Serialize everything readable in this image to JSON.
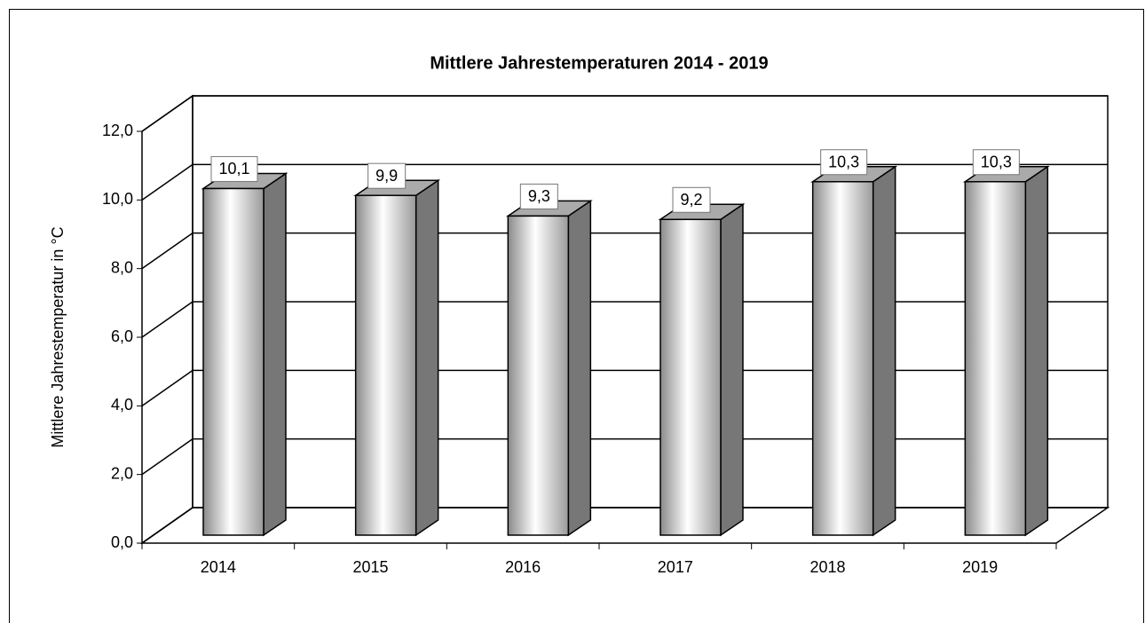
{
  "chart_data": {
    "type": "bar3d",
    "title": "Mittlere Jahrestemperaturen 2014 - 2019",
    "ylabel": "Mittlere Jahrestemperatur in °C",
    "categories": [
      "2014",
      "2015",
      "2016",
      "2017",
      "2018",
      "2019"
    ],
    "values": [
      10.1,
      9.9,
      9.3,
      9.2,
      10.3,
      10.3
    ],
    "value_labels": [
      "10,1",
      "9,9",
      "9,3",
      "9,2",
      "10,3",
      "10,3"
    ],
    "ylim": [
      0,
      12
    ],
    "yticks": [
      {
        "value": 0,
        "label": "0,0"
      },
      {
        "value": 2,
        "label": "2,0"
      },
      {
        "value": 4,
        "label": "4,0"
      },
      {
        "value": 6,
        "label": "6,0"
      },
      {
        "value": 8,
        "label": "8,0"
      },
      {
        "value": 10,
        "label": "10,0"
      },
      {
        "value": 12,
        "label": "12,0"
      }
    ],
    "grid": true
  }
}
